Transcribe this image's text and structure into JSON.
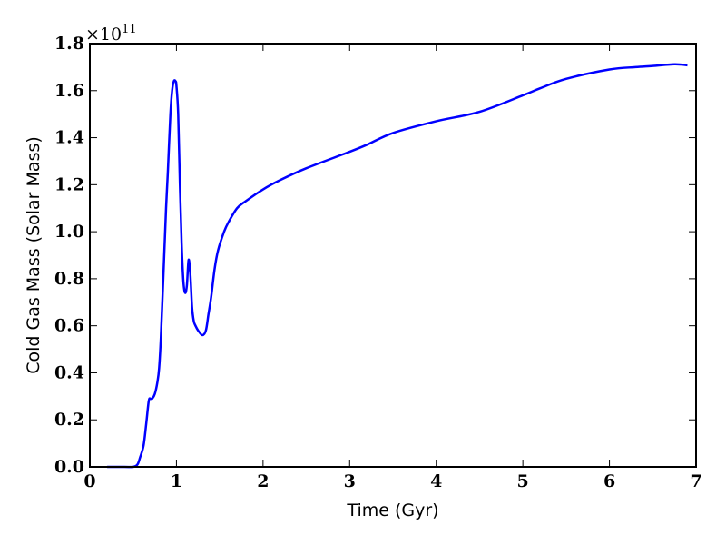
{
  "chart_data": {
    "type": "line",
    "xlabel": "Time (Gyr)",
    "ylabel": "Cold Gas Mass (Solar Mass)",
    "y_offset_text": {
      "base": "×10",
      "exponent": "11"
    },
    "xlim": [
      0,
      7
    ],
    "ylim": [
      0,
      1.8
    ],
    "x_ticks": [
      0,
      1,
      2,
      3,
      4,
      5,
      6,
      7
    ],
    "x_tick_labels": [
      "0",
      "1",
      "2",
      "3",
      "4",
      "5",
      "6",
      "7"
    ],
    "y_ticks": [
      0,
      0.2,
      0.4,
      0.6,
      0.8,
      1.0,
      1.2,
      1.4,
      1.6,
      1.8
    ],
    "y_tick_labels": [
      "0.0",
      "0.2",
      "0.4",
      "0.6",
      "0.8",
      "1.0",
      "1.2",
      "1.4",
      "1.6",
      "1.8"
    ],
    "grid": false,
    "line_color": "#0000ff",
    "series": [
      {
        "x": [
          0.2,
          0.4,
          0.5,
          0.55,
          0.58,
          0.62,
          0.65,
          0.68,
          0.7,
          0.72,
          0.75,
          0.78,
          0.8,
          0.82,
          0.85,
          0.88,
          0.9,
          0.93,
          0.95,
          0.97,
          0.99,
          1.0,
          1.02,
          1.04,
          1.06,
          1.08,
          1.1,
          1.12,
          1.14,
          1.16,
          1.18,
          1.2,
          1.22,
          1.25,
          1.3,
          1.34,
          1.37,
          1.4,
          1.44,
          1.48,
          1.55,
          1.6,
          1.7,
          1.8,
          2.0,
          2.2,
          2.5,
          3.0,
          3.2,
          3.5,
          4.0,
          4.5,
          5.0,
          5.2,
          5.5,
          6.0,
          6.3,
          6.5,
          6.75,
          6.9
        ],
        "y": [
          0.0,
          0.0,
          0.0,
          0.01,
          0.04,
          0.09,
          0.18,
          0.28,
          0.29,
          0.29,
          0.31,
          0.36,
          0.42,
          0.55,
          0.82,
          1.1,
          1.25,
          1.5,
          1.6,
          1.64,
          1.64,
          1.62,
          1.5,
          1.2,
          0.95,
          0.79,
          0.74,
          0.77,
          0.88,
          0.82,
          0.68,
          0.62,
          0.6,
          0.58,
          0.56,
          0.58,
          0.65,
          0.72,
          0.84,
          0.92,
          1.0,
          1.04,
          1.1,
          1.13,
          1.18,
          1.22,
          1.27,
          1.34,
          1.37,
          1.42,
          1.47,
          1.51,
          1.58,
          1.61,
          1.65,
          1.69,
          1.7,
          1.705,
          1.712,
          1.708
        ]
      }
    ]
  }
}
